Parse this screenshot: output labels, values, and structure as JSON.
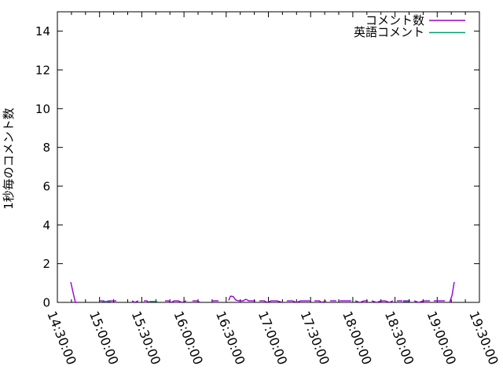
{
  "chart_data": {
    "type": "line",
    "title": "",
    "xlabel": "",
    "ylabel": "1秒毎のコメント数",
    "x_tick_labels": [
      "14:30:00",
      "15:00:00",
      "15:30:00",
      "16:00:00",
      "16:30:00",
      "17:00:00",
      "17:30:00",
      "18:00:00",
      "18:30:00",
      "19:00:00",
      "19:30:00"
    ],
    "x_major_step_minutes": 30,
    "x_minor_step_minutes": 10,
    "xlim_minutes": [
      0,
      300
    ],
    "y_ticks": [
      0,
      2,
      4,
      6,
      8,
      10,
      12,
      14
    ],
    "ylim": [
      0,
      15
    ],
    "grid": false,
    "legend_position": "top-right-inside",
    "frame_color": "#000000",
    "background_color": "#ffffff",
    "series": [
      {
        "name": "コメント数",
        "color": "#9400d3",
        "points": [
          [
            9.5,
            1.05
          ],
          [
            11.5,
            0.4
          ],
          [
            12.8,
            0
          ],
          [
            14,
            0
          ],
          null,
          [
            30.2,
            0.08
          ],
          [
            33,
            0.08
          ],
          [
            34.5,
            0
          ],
          [
            36,
            0.08
          ],
          [
            39,
            0.08
          ],
          [
            41.9,
            0.08
          ],
          null,
          [
            53.1,
            0.08
          ],
          [
            55,
            0
          ],
          [
            57.5,
            0.08
          ],
          null,
          [
            61.5,
            0.08
          ],
          [
            63.5,
            0.08
          ],
          [
            65.4,
            0
          ],
          null,
          [
            76.5,
            0.08
          ],
          [
            79,
            0.08
          ],
          [
            81,
            0
          ],
          [
            83,
            0.08
          ],
          [
            86,
            0.08
          ],
          [
            88.5,
            0
          ],
          [
            91.6,
            0.08
          ],
          null,
          [
            96,
            0.08
          ],
          [
            99,
            0.08
          ],
          [
            101.7,
            0
          ],
          null,
          [
            110,
            0.08
          ],
          [
            112,
            0.08
          ],
          [
            114.5,
            0.08
          ],
          null,
          [
            121.8,
            0.1
          ],
          [
            123,
            0.32
          ],
          [
            125,
            0.3
          ],
          [
            126.8,
            0.12
          ],
          [
            129,
            0.08
          ],
          [
            132,
            0.08
          ],
          [
            134,
            0.16
          ],
          [
            136,
            0.08
          ],
          [
            140.8,
            0.08
          ],
          null,
          [
            143.6,
            0.08
          ],
          [
            147,
            0.08
          ],
          [
            149,
            0
          ],
          [
            152,
            0.08
          ],
          [
            156,
            0.08
          ],
          [
            160.3,
            0
          ],
          null,
          [
            163.1,
            0.08
          ],
          [
            167,
            0.08
          ],
          [
            170,
            0
          ],
          [
            173,
            0.08
          ],
          [
            177,
            0.08
          ],
          [
            179.9,
            0.08
          ],
          null,
          [
            182.7,
            0.08
          ],
          [
            186,
            0.08
          ],
          [
            188,
            0
          ],
          [
            191.1,
            0.08
          ],
          null,
          [
            193.9,
            0.08
          ],
          [
            198.3,
            0.08
          ],
          null,
          [
            200.6,
            0.08
          ],
          [
            204,
            0.08
          ],
          [
            208.9,
            0.08
          ],
          null,
          [
            211.7,
            0.08
          ],
          [
            215,
            0
          ],
          [
            218,
            0.08
          ],
          [
            220.7,
            0.08
          ],
          null,
          [
            223.5,
            0.08
          ],
          [
            227,
            0
          ],
          [
            230,
            0.08
          ],
          [
            233,
            0.08
          ],
          [
            236,
            0
          ],
          [
            238.5,
            0.08
          ],
          null,
          [
            241.3,
            0.08
          ],
          [
            245.3,
            0.08
          ],
          null,
          [
            245.8,
            0.08
          ],
          [
            250.8,
            0.08
          ],
          null,
          [
            253.6,
            0.08
          ],
          [
            257,
            0
          ],
          [
            260,
            0.08
          ],
          [
            264.8,
            0.08
          ],
          null,
          [
            267.6,
            0.08
          ],
          [
            271,
            0.08
          ],
          [
            275.4,
            0.08
          ],
          null,
          [
            278.8,
            0
          ],
          [
            280.5,
            0.35
          ],
          [
            282.1,
            1.05
          ]
        ]
      },
      {
        "name": "英語コメント",
        "color": "#009e73",
        "points": [
          [
            31.8,
            0.05
          ],
          [
            35,
            0.05
          ],
          [
            38,
            0.05
          ],
          null,
          [
            65.4,
            0.05
          ],
          [
            68,
            0.05
          ],
          [
            71,
            0.05
          ],
          null,
          [
            245.8,
            0.05
          ],
          [
            248,
            0.05
          ],
          [
            249.7,
            0.05
          ]
        ]
      }
    ]
  }
}
